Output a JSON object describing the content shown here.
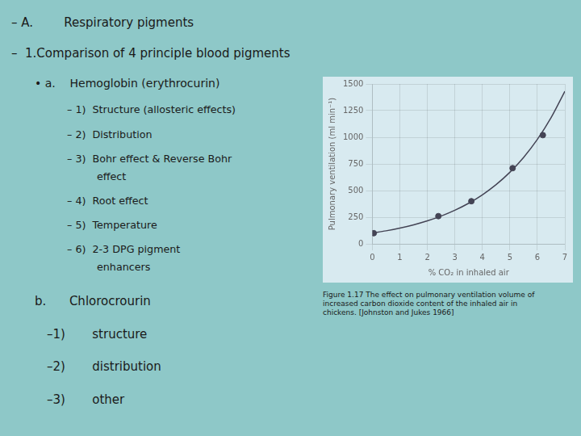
{
  "chart_data": {
    "type": "scatter",
    "xlabel": "% CO₂ in inhaled air",
    "ylabel": "Pulmonary ventilation (ml min⁻¹)",
    "annotations": [
      "– A.        Respiratory pigments",
      "–  1.Comparison of 4 principle blood pigments",
      "• a.    Hemoglobin (erythrocurin)",
      "– 1)  Structure (allosteric effects)",
      "– 2)  Distribution",
      "– 3)  Bohr effect & Reverse Bohr",
      "effect",
      "– 4)  Root effect",
      "– 5)  Temperature",
      "– 6)  2-3 DPG pigment",
      "enhancers",
      "b.      Chlorocrourin",
      "–1)       structure",
      "–2)       distribution",
      "–3)       other",
      "Figure 1.17 The effect on pulmonary ventilation volume of\nincreased carbon dioxide content of the inhaled air in\nchickens. [Johnston and Jukes 1966]"
    ],
    "series": [
      {
        "type": "scatter",
        "color": "#444455",
        "x": [
          0.05,
          2.4,
          3.6,
          5.1,
          6.2
        ],
        "values": [
          100,
          260,
          400,
          710,
          1020
        ]
      },
      {
        "type": "line",
        "color": "#444455",
        "x": [
          0,
          0.5,
          1,
          1.5,
          2,
          2.5,
          3,
          3.5,
          4,
          4.5,
          5,
          5.5,
          6,
          6.5,
          7
        ],
        "values": [
          101.2,
          122.2,
          147.7,
          178.5,
          215.7,
          260.6,
          314.9,
          380.5,
          459.7,
          555.5,
          671.2,
          811.1,
          980.0,
          1184.2,
          1430.9
        ]
      }
    ],
    "xlim": [
      0,
      7
    ],
    "ylim": [
      0,
      1500
    ],
    "xticks": [
      0,
      1,
      2,
      3,
      4,
      5,
      6,
      7
    ],
    "yticks": [
      0,
      250,
      500,
      750,
      1000,
      1250,
      1500
    ],
    "grid": true
  }
}
